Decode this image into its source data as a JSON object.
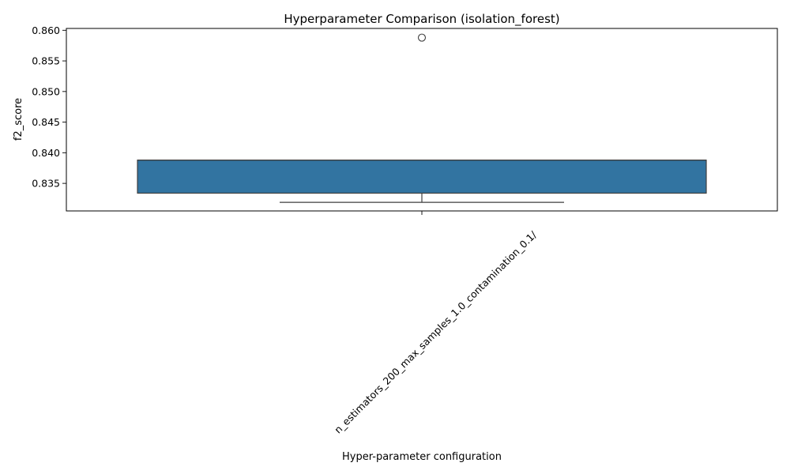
{
  "chart_data": {
    "type": "box",
    "title": "Hyperparameter Comparison (isolation_forest)",
    "xlabel": "Hyper-parameter configuration",
    "ylabel": "f2_score",
    "ylim": [
      0.8305,
      0.8603
    ],
    "yticks": [
      0.835,
      0.84,
      0.845,
      0.85,
      0.855,
      0.86
    ],
    "ytick_labels": [
      "0.835",
      "0.840",
      "0.845",
      "0.850",
      "0.855",
      "0.860"
    ],
    "categories": [
      "n_estimators_200_max_samples_1.0_contamination_0.1/"
    ],
    "boxes": [
      {
        "category": "n_estimators_200_max_samples_1.0_contamination_0.1/",
        "whisker_low": 0.8319,
        "q1": 0.8334,
        "median": 0.8388,
        "q3": 0.8388,
        "whisker_high": 0.8388,
        "outliers": [
          0.8588
        ]
      }
    ],
    "box_color": "#3274a1",
    "grid": false,
    "legend": "none"
  }
}
